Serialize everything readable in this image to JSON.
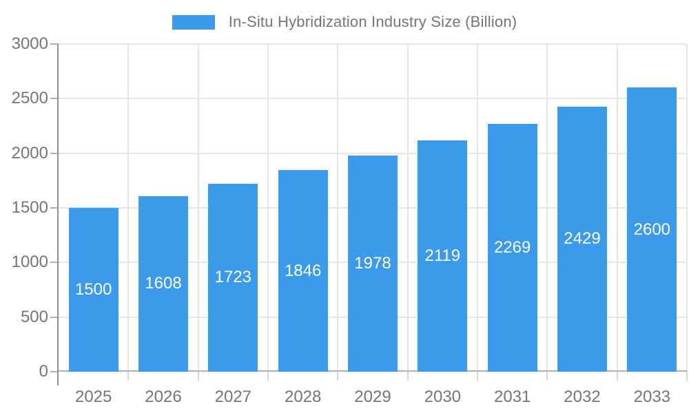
{
  "legend": {
    "label": "In-Situ Hybridization Industry Size (Billion)"
  },
  "chart_data": {
    "type": "bar",
    "title": "In-Situ Hybridization Industry Size (Billion)",
    "series_name": "In-Situ Hybridization Industry Size (Billion)",
    "categories": [
      "2025",
      "2026",
      "2027",
      "2028",
      "2029",
      "2030",
      "2031",
      "2032",
      "2033"
    ],
    "values": [
      1500,
      1608,
      1723,
      1846,
      1978,
      2119,
      2269,
      2429,
      2600
    ],
    "xlabel": "",
    "ylabel": "",
    "ylim": [
      0,
      3000
    ],
    "yticks": [
      0,
      500,
      1000,
      1500,
      2000,
      2500,
      3000
    ],
    "grid": true,
    "legend_position": "top-center",
    "bar_labels_inside": true,
    "colors": {
      "bar": "#3C9AEB",
      "bar_label": "#FFFFFF",
      "axis_text": "#757575",
      "legend_text": "#757575",
      "gridline": "#E6E6E6",
      "x_axis_line": "#B0B0B0",
      "y_axis_line": "#8F8F8F",
      "x_tick": "#D6D6D6",
      "y_tick": "#B0B0B0",
      "background": "#FFFFFF"
    }
  }
}
